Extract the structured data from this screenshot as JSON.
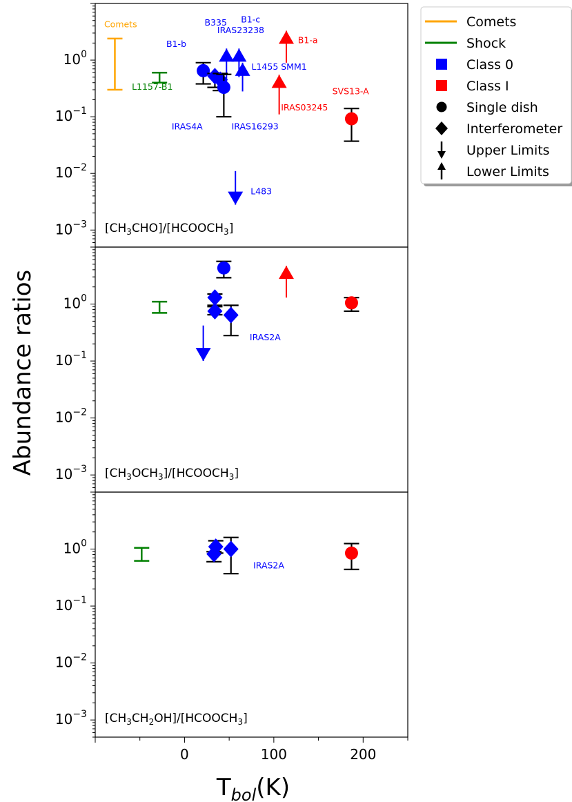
{
  "figure": {
    "ylabel": "Abundance ratios",
    "xlabel_main": "T",
    "xlabel_sub": "bol",
    "xlabel_unit": "(K)"
  },
  "colors": {
    "comets": "#ffa500",
    "shock": "#008000",
    "class0": "#0000ff",
    "class1": "#ff0000",
    "errorbar": "#000000"
  },
  "chart_data": {
    "type": "scatter",
    "xlim": [
      -100,
      250
    ],
    "ylim": [
      0.0005,
      10
    ],
    "yscale": "log",
    "x_ticks": [
      0,
      100,
      200
    ],
    "y_tick_exponents": [
      -3,
      -2,
      -1,
      0
    ],
    "legend": {
      "placement": "outside-top-right",
      "entries": [
        {
          "label": "Comets",
          "marker": "line",
          "color": "#ffa500"
        },
        {
          "label": "Shock",
          "marker": "line",
          "color": "#008000"
        },
        {
          "label": "Class 0",
          "marker": "square",
          "color": "#0000ff"
        },
        {
          "label": "Class I",
          "marker": "square",
          "color": "#ff0000"
        },
        {
          "label": "Single dish",
          "marker": "circle",
          "color": "#000000"
        },
        {
          "label": "Interferometer",
          "marker": "diamond",
          "color": "#000000"
        },
        {
          "label": "Upper Limits",
          "marker": "arrow-down",
          "color": "#000000"
        },
        {
          "label": "Lower Limits",
          "marker": "arrow-up",
          "color": "#000000"
        }
      ]
    },
    "panels": [
      {
        "title_parts": [
          [
            "[CH",
            "n"
          ],
          [
            "3",
            "sub"
          ],
          [
            "CHO]/[HCOOCH",
            "n"
          ],
          [
            "3",
            "sub"
          ],
          [
            "]",
            "n"
          ]
        ],
        "ranges": [
          {
            "type": "range",
            "x": -78,
            "low": 0.3,
            "high": 2.4,
            "color": "#ffa500"
          },
          {
            "type": "range",
            "x": -28,
            "low": 0.4,
            "high": 0.6,
            "color": "#008000"
          }
        ],
        "points": [
          {
            "x": 21,
            "y": 0.65,
            "marker": "circle",
            "color": "#0000ff",
            "err_low": 0.38,
            "err_high": 0.9
          },
          {
            "x": 34,
            "y": 0.52,
            "marker": "diamond",
            "color": "#0000ff",
            "err_low": 0.33,
            "err_high": 0.58
          },
          {
            "x": 40,
            "y": 0.45,
            "marker": "diamond",
            "color": "#0000ff",
            "err_low": 0.29,
            "err_high": 0.58
          },
          {
            "x": 44,
            "y": 0.33,
            "marker": "circle",
            "color": "#0000ff",
            "err_low": 0.1,
            "err_high": 0.56
          },
          {
            "x": 187,
            "y": 0.092,
            "marker": "circle",
            "color": "#ff0000",
            "err_low": 0.037,
            "err_high": 0.14
          }
        ],
        "limits": [
          {
            "x": 47,
            "y": 1.6,
            "kind": "lower",
            "from": 0.4,
            "color": "#0000ff"
          },
          {
            "x": 61,
            "y": 1.6,
            "kind": "lower",
            "from": 0.5,
            "color": "#0000ff"
          },
          {
            "x": 65,
            "y": 0.9,
            "kind": "lower",
            "from": 0.28,
            "color": "#0000ff"
          },
          {
            "x": 106,
            "y": 0.55,
            "kind": "lower",
            "from": 0.11,
            "color": "#ff0000"
          },
          {
            "x": 114,
            "y": 3.3,
            "kind": "lower",
            "from": 0.9,
            "color": "#ff0000"
          },
          {
            "x": 57,
            "y": 0.0028,
            "kind": "upper",
            "from": 0.011,
            "color": "#0000ff"
          }
        ],
        "labels": [
          {
            "text": "Comets",
            "x": -90,
            "y": 3.8,
            "color": "#ffa500",
            "anchor": "start"
          },
          {
            "text": "L1157-B1",
            "x": -59,
            "y": 0.3,
            "color": "#008000",
            "anchor": "start"
          },
          {
            "text": "B1-b",
            "x": 2,
            "y": 1.7,
            "color": "#0000ff",
            "anchor": "end"
          },
          {
            "text": "B335",
            "x": 35,
            "y": 4.1,
            "color": "#0000ff",
            "anchor": "middle"
          },
          {
            "text": "B1-c",
            "x": 74,
            "y": 4.6,
            "color": "#0000ff",
            "anchor": "middle"
          },
          {
            "text": "IRAS23238",
            "x": 63,
            "y": 3.0,
            "color": "#0000ff",
            "anchor": "middle"
          },
          {
            "text": "B1-a",
            "x": 127,
            "y": 2.0,
            "color": "#ff0000",
            "anchor": "start"
          },
          {
            "text": "L1455 SMM1",
            "x": 75,
            "y": 0.68,
            "color": "#0000ff",
            "anchor": "start"
          },
          {
            "text": "SVS13-A",
            "x": 186,
            "y": 0.25,
            "color": "#ff0000",
            "anchor": "middle"
          },
          {
            "text": "IRAS03245",
            "x": 108,
            "y": 0.13,
            "color": "#ff0000",
            "anchor": "start"
          },
          {
            "text": "IRAS4A",
            "x": 3,
            "y": 0.06,
            "color": "#0000ff",
            "anchor": "middle"
          },
          {
            "text": "IRAS16293",
            "x": 79,
            "y": 0.06,
            "color": "#0000ff",
            "anchor": "middle"
          },
          {
            "text": "L483",
            "x": 74,
            "y": 0.0043,
            "color": "#0000ff",
            "anchor": "start"
          }
        ]
      },
      {
        "title_parts": [
          [
            "[CH",
            "n"
          ],
          [
            "3",
            "sub"
          ],
          [
            "OCH",
            "n"
          ],
          [
            "3",
            "sub"
          ],
          [
            "]/[HCOOCH",
            "n"
          ],
          [
            "3",
            "sub"
          ],
          [
            "]",
            "n"
          ]
        ],
        "ranges": [
          {
            "type": "range",
            "x": -28,
            "low": 0.7,
            "high": 1.1,
            "color": "#008000"
          }
        ],
        "points": [
          {
            "x": 44,
            "y": 4.3,
            "marker": "circle",
            "color": "#0000ff",
            "err_low": 2.9,
            "err_high": 5.6
          },
          {
            "x": 34,
            "y": 1.3,
            "marker": "diamond",
            "color": "#0000ff",
            "err_low": 0.9,
            "err_high": 1.5
          },
          {
            "x": 34,
            "y": 0.75,
            "marker": "diamond",
            "color": "#0000ff",
            "err_low": 0.65,
            "err_high": 0.95
          },
          {
            "x": 52,
            "y": 0.64,
            "marker": "diamond",
            "color": "#0000ff",
            "err_low": 0.28,
            "err_high": 0.95
          },
          {
            "x": 187,
            "y": 1.05,
            "marker": "circle",
            "color": "#ff0000",
            "err_low": 0.75,
            "err_high": 1.3
          }
        ],
        "limits": [
          {
            "x": 114,
            "y": 4.7,
            "kind": "lower",
            "from": 1.3,
            "color": "#ff0000"
          },
          {
            "x": 21,
            "y": 0.1,
            "kind": "upper",
            "from": 0.42,
            "color": "#0000ff"
          }
        ],
        "labels": [
          {
            "text": "IRAS2A",
            "x": 73,
            "y": 0.23,
            "color": "#0000ff",
            "anchor": "start"
          }
        ]
      },
      {
        "title_parts": [
          [
            "[CH",
            "n"
          ],
          [
            "3",
            "sub"
          ],
          [
            "CH",
            "n"
          ],
          [
            "2",
            "sub"
          ],
          [
            "OH]/[HCOOCH",
            "n"
          ],
          [
            "3",
            "sub"
          ],
          [
            "]",
            "n"
          ]
        ],
        "ranges": [
          {
            "type": "range",
            "x": -48,
            "low": 0.62,
            "high": 1.05,
            "color": "#008000"
          }
        ],
        "points": [
          {
            "x": 35,
            "y": 1.1,
            "marker": "diamond",
            "color": "#0000ff",
            "err_low": 0.85,
            "err_high": 1.4
          },
          {
            "x": 33,
            "y": 0.82,
            "marker": "diamond",
            "color": "#0000ff",
            "err_low": 0.6,
            "err_high": 0.9
          },
          {
            "x": 52,
            "y": 1.0,
            "marker": "diamond",
            "color": "#0000ff",
            "err_low": 0.37,
            "err_high": 1.6
          },
          {
            "x": 187,
            "y": 0.85,
            "marker": "circle",
            "color": "#ff0000",
            "err_low": 0.44,
            "err_high": 1.25
          }
        ],
        "limits": [],
        "labels": [
          {
            "text": "IRAS2A",
            "x": 77,
            "y": 0.46,
            "color": "#0000ff",
            "anchor": "start"
          }
        ]
      }
    ]
  }
}
